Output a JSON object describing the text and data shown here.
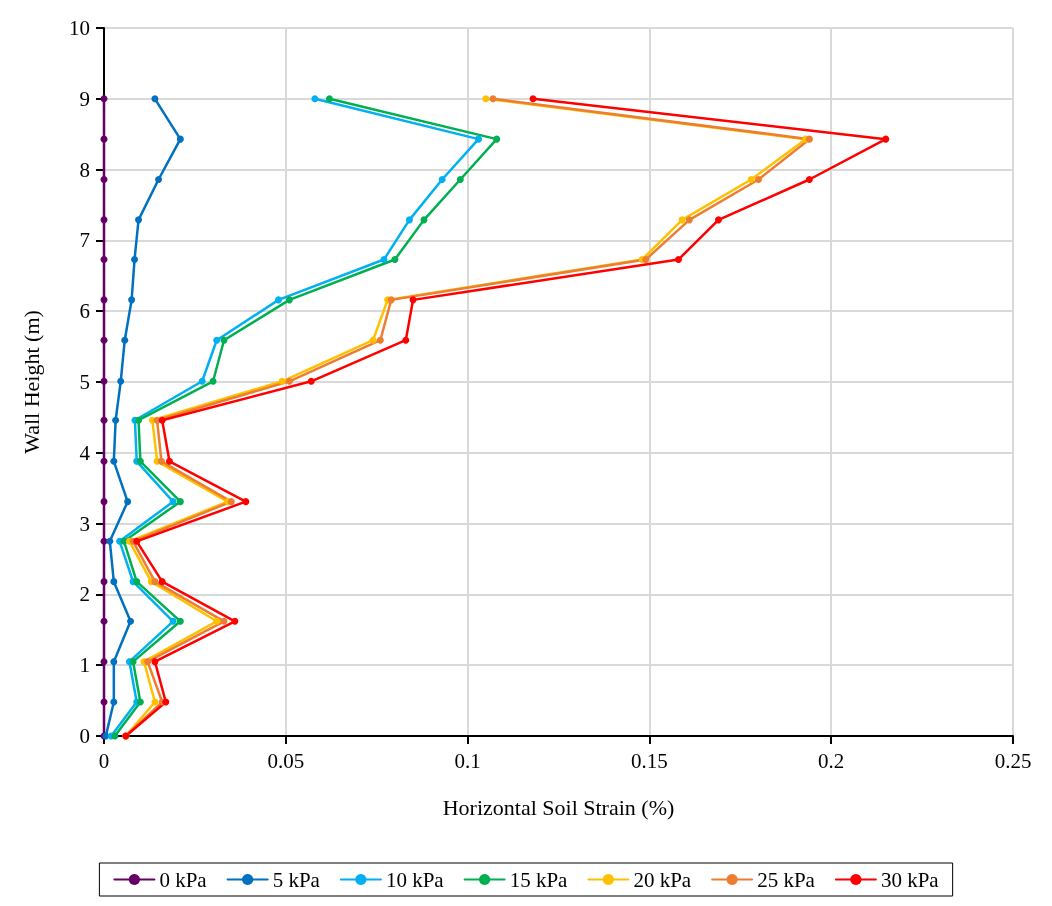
{
  "chart_data": {
    "type": "line",
    "xlabel": "Horizontal Soil Strain (%)",
    "ylabel": "Wall Height (m)",
    "xlim": [
      0,
      0.25
    ],
    "xticks": [
      0,
      0.05,
      0.1,
      0.15,
      0.2,
      0.25
    ],
    "ylim": [
      0,
      10
    ],
    "yticks": [
      0,
      1,
      2,
      3,
      4,
      5,
      6,
      7,
      8,
      9,
      10
    ],
    "grid": true,
    "legend": "bottom",
    "marker": "circle",
    "line_style": "solid",
    "series": [
      {
        "name": "0 kPa",
        "color": "#660066",
        "x": [
          0,
          0,
          0,
          0,
          0,
          0,
          0,
          0,
          0,
          0,
          0,
          0,
          0,
          0,
          0,
          0,
          0
        ],
        "values": [
          9.0,
          8.43,
          7.86,
          7.29,
          6.73,
          6.16,
          5.59,
          5.01,
          4.46,
          3.88,
          3.31,
          2.75,
          2.18,
          1.62,
          1.05,
          0.48,
          0
        ]
      },
      {
        "name": "5 kPa",
        "color": "#0070c0",
        "x": [
          0.014,
          0.021,
          0.015,
          0.0095,
          0.0084,
          0.0076,
          0.0057,
          0.0046,
          0.0032,
          0.0027,
          0.0065,
          0.0016,
          0.0027,
          0.0073,
          0.0027,
          0.0027,
          0.0005
        ],
        "values": [
          9.0,
          8.43,
          7.86,
          7.29,
          6.73,
          6.16,
          5.59,
          5.01,
          4.46,
          3.88,
          3.31,
          2.75,
          2.18,
          1.62,
          1.05,
          0.48,
          0
        ]
      },
      {
        "name": "10 kPa",
        "color": "#00b0f0",
        "x": [
          0.058,
          0.103,
          0.093,
          0.084,
          0.077,
          0.048,
          0.031,
          0.027,
          0.0085,
          0.009,
          0.019,
          0.0043,
          0.008,
          0.019,
          0.007,
          0.009,
          0.002
        ],
        "values": [
          9.0,
          8.43,
          7.86,
          7.29,
          6.73,
          6.16,
          5.59,
          5.01,
          4.46,
          3.88,
          3.31,
          2.75,
          2.18,
          1.62,
          1.05,
          0.48,
          0
        ]
      },
      {
        "name": "15 kPa",
        "color": "#00b050",
        "x": [
          0.062,
          0.108,
          0.098,
          0.088,
          0.08,
          0.051,
          0.033,
          0.03,
          0.0095,
          0.01,
          0.021,
          0.0055,
          0.009,
          0.021,
          0.008,
          0.01,
          0.003
        ],
        "values": [
          9.0,
          8.43,
          7.86,
          7.29,
          6.73,
          6.16,
          5.59,
          5.01,
          4.46,
          3.88,
          3.31,
          2.75,
          2.18,
          1.62,
          1.05,
          0.48,
          0
        ]
      },
      {
        "name": "20 kPa",
        "color": "#ffc000",
        "x": [
          0.105,
          0.193,
          0.178,
          0.159,
          0.148,
          0.078,
          0.074,
          0.049,
          0.0133,
          0.0146,
          0.034,
          0.007,
          0.013,
          0.031,
          0.011,
          0.014,
          0.006
        ],
        "values": [
          9.0,
          8.43,
          7.86,
          7.29,
          6.73,
          6.16,
          5.59,
          5.01,
          4.46,
          3.88,
          3.31,
          2.75,
          2.18,
          1.62,
          1.05,
          0.48,
          0
        ]
      },
      {
        "name": "25 kPa",
        "color": "#ed7d31",
        "x": [
          0.107,
          0.194,
          0.18,
          0.161,
          0.149,
          0.079,
          0.076,
          0.051,
          0.0146,
          0.0158,
          0.035,
          0.008,
          0.014,
          0.033,
          0.012,
          0.016,
          0.006
        ],
        "values": [
          9.0,
          8.43,
          7.86,
          7.29,
          6.73,
          6.16,
          5.59,
          5.01,
          4.46,
          3.88,
          3.31,
          2.75,
          2.18,
          1.62,
          1.05,
          0.48,
          0
        ]
      },
      {
        "name": "30 kPa",
        "color": "#ff0000",
        "x": [
          0.118,
          0.215,
          0.194,
          0.169,
          0.158,
          0.085,
          0.083,
          0.057,
          0.016,
          0.018,
          0.039,
          0.009,
          0.016,
          0.036,
          0.014,
          0.017,
          0.006
        ],
        "values": [
          9.0,
          8.43,
          7.86,
          7.29,
          6.73,
          6.16,
          5.59,
          5.01,
          4.46,
          3.88,
          3.31,
          2.75,
          2.18,
          1.62,
          1.05,
          0.48,
          0
        ]
      }
    ]
  }
}
